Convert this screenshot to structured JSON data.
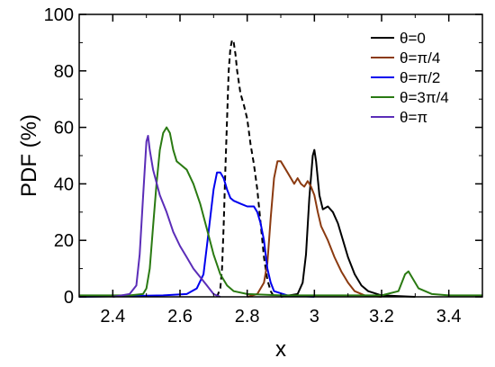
{
  "chart_data": {
    "type": "line",
    "title": "",
    "xlabel": "x",
    "ylabel": "PDF (%)",
    "xlim": [
      2.3,
      3.5
    ],
    "ylim": [
      0,
      100
    ],
    "xticks": [
      2.4,
      2.6,
      2.8,
      3.0,
      3.2,
      3.4
    ],
    "xtick_labels": [
      "2.4",
      "2.6",
      "2.8",
      "3",
      "3.2",
      "3.4"
    ],
    "yticks": [
      0,
      20,
      40,
      60,
      80,
      100
    ],
    "ytick_labels": [
      "0",
      "20",
      "40",
      "60",
      "80",
      "100"
    ],
    "grid": false,
    "legend_position": "top-right",
    "series": [
      {
        "name": "θ=0",
        "color": "#000000",
        "dash": "dashed",
        "points": [
          [
            2.71,
            0
          ],
          [
            2.72,
            3
          ],
          [
            2.725,
            10
          ],
          [
            2.73,
            25
          ],
          [
            2.735,
            45
          ],
          [
            2.74,
            63
          ],
          [
            2.745,
            80
          ],
          [
            2.75,
            88
          ],
          [
            2.755,
            91
          ],
          [
            2.76,
            90
          ],
          [
            2.765,
            86
          ],
          [
            2.77,
            80
          ],
          [
            2.78,
            72
          ],
          [
            2.79,
            68
          ],
          [
            2.8,
            63
          ],
          [
            2.81,
            54
          ],
          [
            2.82,
            47
          ],
          [
            2.83,
            38
          ],
          [
            2.84,
            26
          ],
          [
            2.85,
            14
          ],
          [
            2.86,
            6
          ],
          [
            2.87,
            2
          ],
          [
            2.88,
            0
          ]
        ]
      },
      {
        "name": "θ=0",
        "color": "#000000",
        "dash": "solid",
        "points": [
          [
            2.9,
            0
          ],
          [
            2.95,
            1
          ],
          [
            2.965,
            5
          ],
          [
            2.975,
            15
          ],
          [
            2.985,
            35
          ],
          [
            2.995,
            50
          ],
          [
            3.0,
            52
          ],
          [
            3.005,
            48
          ],
          [
            3.015,
            36
          ],
          [
            3.025,
            31
          ],
          [
            3.04,
            32
          ],
          [
            3.055,
            30
          ],
          [
            3.07,
            26
          ],
          [
            3.085,
            20
          ],
          [
            3.1,
            14
          ],
          [
            3.12,
            8
          ],
          [
            3.14,
            4
          ],
          [
            3.16,
            2
          ],
          [
            3.2,
            0.5
          ],
          [
            3.3,
            0
          ]
        ]
      },
      {
        "name": "θ=π/4",
        "color": "#8b3a10",
        "dash": "solid",
        "points": [
          [
            2.8,
            0
          ],
          [
            2.83,
            1
          ],
          [
            2.85,
            5
          ],
          [
            2.86,
            12
          ],
          [
            2.87,
            28
          ],
          [
            2.88,
            42
          ],
          [
            2.89,
            48
          ],
          [
            2.9,
            48
          ],
          [
            2.92,
            44
          ],
          [
            2.94,
            40
          ],
          [
            2.95,
            42
          ],
          [
            2.96,
            40
          ],
          [
            2.97,
            39
          ],
          [
            2.98,
            41
          ],
          [
            2.99,
            39
          ],
          [
            3.0,
            36
          ],
          [
            3.01,
            30
          ],
          [
            3.02,
            25
          ],
          [
            3.04,
            20
          ],
          [
            3.06,
            14
          ],
          [
            3.08,
            9
          ],
          [
            3.1,
            5
          ],
          [
            3.12,
            2
          ],
          [
            3.15,
            0.5
          ],
          [
            3.2,
            0
          ]
        ]
      },
      {
        "name": "θ=π/2",
        "color": "#0000ee",
        "dash": "solid",
        "points": [
          [
            2.3,
            0
          ],
          [
            2.55,
            0.5
          ],
          [
            2.62,
            1
          ],
          [
            2.65,
            3
          ],
          [
            2.67,
            8
          ],
          [
            2.68,
            18
          ],
          [
            2.69,
            28
          ],
          [
            2.7,
            38
          ],
          [
            2.71,
            44
          ],
          [
            2.72,
            44
          ],
          [
            2.73,
            42
          ],
          [
            2.74,
            38
          ],
          [
            2.75,
            35
          ],
          [
            2.76,
            34
          ],
          [
            2.78,
            33
          ],
          [
            2.8,
            32
          ],
          [
            2.82,
            32
          ],
          [
            2.83,
            30
          ],
          [
            2.84,
            26
          ],
          [
            2.85,
            20
          ],
          [
            2.86,
            10
          ],
          [
            2.87,
            5
          ],
          [
            2.88,
            2
          ],
          [
            2.92,
            0.5
          ],
          [
            3.0,
            0
          ]
        ]
      },
      {
        "name": "θ=3π/4",
        "color": "#2a7a12",
        "dash": "solid",
        "points": [
          [
            2.3,
            0.5
          ],
          [
            2.45,
            0.5
          ],
          [
            2.49,
            1
          ],
          [
            2.5,
            3
          ],
          [
            2.51,
            10
          ],
          [
            2.52,
            25
          ],
          [
            2.53,
            40
          ],
          [
            2.54,
            52
          ],
          [
            2.55,
            58
          ],
          [
            2.56,
            60
          ],
          [
            2.57,
            58
          ],
          [
            2.58,
            52
          ],
          [
            2.59,
            48
          ],
          [
            2.6,
            47
          ],
          [
            2.62,
            45
          ],
          [
            2.64,
            40
          ],
          [
            2.66,
            33
          ],
          [
            2.68,
            24
          ],
          [
            2.7,
            15
          ],
          [
            2.72,
            8
          ],
          [
            2.74,
            4
          ],
          [
            2.76,
            2
          ],
          [
            2.8,
            1
          ],
          [
            2.9,
            0.5
          ],
          [
            3.2,
            0.5
          ],
          [
            3.25,
            2
          ],
          [
            3.27,
            8
          ],
          [
            3.28,
            9
          ],
          [
            3.29,
            7
          ],
          [
            3.31,
            3
          ],
          [
            3.35,
            1
          ],
          [
            3.4,
            0.5
          ],
          [
            3.5,
            0.5
          ]
        ]
      },
      {
        "name": "θ=π",
        "color": "#5b2db8",
        "dash": "solid",
        "points": [
          [
            2.4,
            0
          ],
          [
            2.45,
            1
          ],
          [
            2.47,
            4
          ],
          [
            2.48,
            15
          ],
          [
            2.49,
            35
          ],
          [
            2.5,
            55
          ],
          [
            2.505,
            57
          ],
          [
            2.51,
            52
          ],
          [
            2.52,
            45
          ],
          [
            2.54,
            36
          ],
          [
            2.56,
            30
          ],
          [
            2.58,
            23
          ],
          [
            2.6,
            18
          ],
          [
            2.62,
            14
          ],
          [
            2.64,
            10
          ],
          [
            2.66,
            7
          ],
          [
            2.68,
            4
          ],
          [
            2.7,
            1
          ],
          [
            2.72,
            0
          ]
        ]
      }
    ],
    "legend": [
      {
        "label": "θ=0",
        "color": "#000000"
      },
      {
        "label": "θ=π/4",
        "color": "#8b3a10"
      },
      {
        "label": "θ=π/2",
        "color": "#0000ee"
      },
      {
        "label": "θ=3π/4",
        "color": "#2a7a12"
      },
      {
        "label": "θ=π",
        "color": "#5b2db8"
      }
    ]
  }
}
